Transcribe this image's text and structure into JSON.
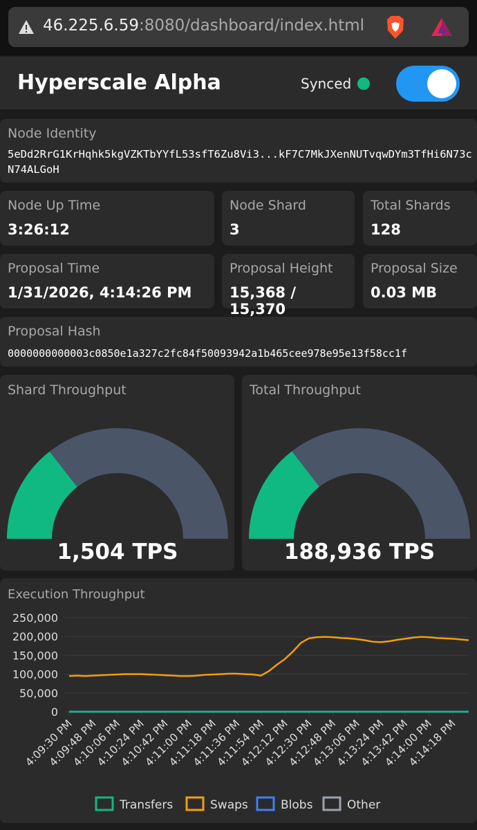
{
  "browser": {
    "url_host": "46.225.6.59",
    "url_path": ":8080/dashboard/index.html"
  },
  "header": {
    "title": "Hyperscale Alpha",
    "status": "Synced"
  },
  "node_identity": {
    "label": "Node Identity",
    "value": "5eDd2RrG1KrHqhk5kgVZKTbYYfL53sfT6Zu8Vi3...kF7C7MkJXenNUTvqwDYm3TfHi6N73cN74ALGoH"
  },
  "stats": [
    {
      "label": "Node Up Time",
      "value": "3:26:12"
    },
    {
      "label": "Node Shard",
      "value": "3"
    },
    {
      "label": "Total Shards",
      "value": "128"
    },
    {
      "label": "Proposal Time",
      "value": "1/31/2026, 4:14:26 PM"
    },
    {
      "label": "Proposal Height",
      "value": "15,368 / 15,370"
    },
    {
      "label": "Proposal Size",
      "value": "0.03 MB"
    }
  ],
  "proposal_hash": {
    "label": "Proposal Hash",
    "value": "0000000000003c0850e1a327c2fc84f50093942a1b465cee978e95e13f58cc1f"
  },
  "gauges": [
    {
      "title": "Shard Throughput",
      "value": 1504,
      "value_label": "1,504 TPS",
      "max": 5200
    },
    {
      "title": "Total Throughput",
      "value": 188936,
      "value_label": "188,936 TPS",
      "max": 650000
    }
  ],
  "chart": {
    "type": "line",
    "title": "Execution Throughput",
    "categories": [
      "4:09:30 PM",
      null,
      null,
      "4:09:48 PM",
      null,
      null,
      "4:10:06 PM",
      null,
      null,
      "4:10:24 PM",
      null,
      null,
      "4:10:42 PM",
      null,
      null,
      "4:11:00 PM",
      null,
      null,
      "4:11:18 PM",
      null,
      null,
      "4:11:36 PM",
      null,
      null,
      "4:11:54 PM",
      null,
      null,
      "4:12:12 PM",
      null,
      null,
      "4:12:30 PM",
      null,
      null,
      "4:12:48 PM",
      null,
      null,
      "4:13:06 PM",
      null,
      null,
      "4:13:24 PM",
      null,
      null,
      "4:13:42 PM",
      null,
      null,
      "4:14:00 PM",
      null,
      null,
      "4:14:18 PM",
      null,
      null
    ],
    "series": [
      {
        "name": "Transfers",
        "color": "#10b981",
        "values": [
          0,
          0,
          0,
          0,
          0,
          0,
          0,
          0,
          0,
          0,
          0,
          0,
          0,
          0,
          0,
          0,
          0,
          0,
          0,
          0,
          0,
          0,
          0,
          0,
          0,
          0,
          0,
          0,
          0,
          0,
          0,
          0,
          0,
          0,
          0,
          0,
          0,
          0,
          0,
          0,
          0,
          0,
          0,
          0,
          0,
          0,
          0,
          0,
          0,
          0,
          0
        ]
      },
      {
        "name": "Swaps",
        "color": "#f59e0b",
        "values": [
          95000,
          96000,
          95000,
          96000,
          97000,
          98000,
          99000,
          100000,
          100000,
          100000,
          99000,
          98000,
          97000,
          96000,
          95000,
          95000,
          96000,
          98000,
          99000,
          100000,
          101000,
          101000,
          100000,
          99000,
          96000,
          108000,
          125000,
          140000,
          160000,
          183000,
          195000,
          198000,
          199000,
          198000,
          196000,
          195000,
          193000,
          190000,
          186000,
          185000,
          187000,
          191000,
          194000,
          197000,
          199000,
          198000,
          196000,
          195000,
          194000,
          192000,
          190000
        ]
      },
      {
        "name": "Blobs",
        "color": "#3b82f6",
        "values": [
          0,
          0,
          0,
          0,
          0,
          0,
          0,
          0,
          0,
          0,
          0,
          0,
          0,
          0,
          0,
          0,
          0,
          0,
          0,
          0,
          0,
          0,
          0,
          0,
          0,
          0,
          0,
          0,
          0,
          0,
          0,
          0,
          0,
          0,
          0,
          0,
          0,
          0,
          0,
          0,
          0,
          0,
          0,
          0,
          0,
          0,
          0,
          0,
          0,
          0,
          0
        ]
      },
      {
        "name": "Other",
        "color": "#9ca3af",
        "values": [
          0,
          0,
          0,
          0,
          0,
          0,
          0,
          0,
          0,
          0,
          0,
          0,
          0,
          0,
          0,
          0,
          0,
          0,
          0,
          0,
          0,
          0,
          0,
          0,
          0,
          0,
          0,
          0,
          0,
          0,
          0,
          0,
          0,
          0,
          0,
          0,
          0,
          0,
          0,
          0,
          0,
          0,
          0,
          0,
          0,
          0,
          0,
          0,
          0,
          0,
          0
        ]
      }
    ],
    "ylim": [
      0,
      250000
    ],
    "yticks": [
      0,
      {
        "value": 50000,
        "label": "50,000"
      },
      {
        "value": 100000,
        "label": "100,000"
      },
      {
        "value": 150000,
        "label": "150,000"
      },
      {
        "value": 200000,
        "label": "200,000"
      },
      {
        "value": 250000,
        "label": "250,000"
      }
    ],
    "grid": true
  }
}
